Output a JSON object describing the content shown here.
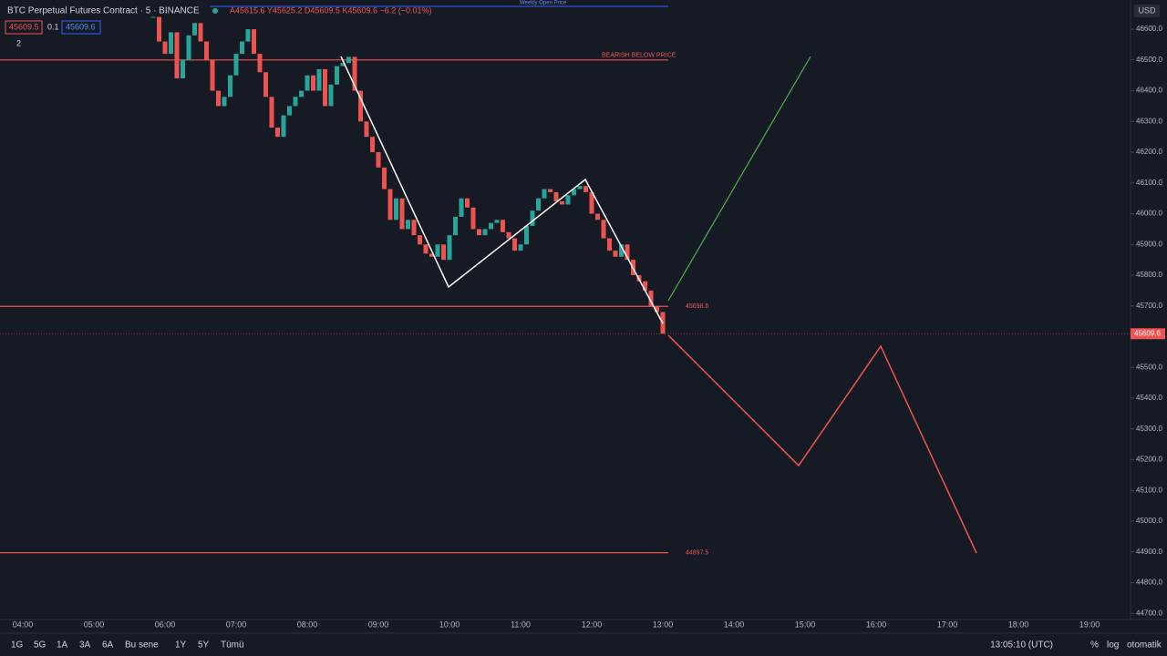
{
  "header": {
    "symbol": "BTC Perpetual Futures Contract · 5 · BINANCE",
    "ohlc": "A45615.6 Y45625.2 D45609.5 K45609.6 −6.2 (−0.01%)",
    "sell": "45609.5",
    "spread": "0.1",
    "buy": "45609.6",
    "indicators": "2",
    "currency": "USD",
    "weekly": "Weekly Open Price"
  },
  "toolbar": {
    "ranges": [
      "1G",
      "5G",
      "1A",
      "3A",
      "6A",
      "Bu sene",
      "1Y",
      "5Y",
      "Tümü"
    ],
    "clock": "13:05:10 (UTC)",
    "percent": "%",
    "log": "log",
    "auto": "otomatik"
  },
  "chart_data": {
    "type": "candlestick",
    "title": "BTC Perpetual Futures Contract",
    "values": [
      46640,
      46560,
      46520,
      46590,
      46440,
      46500,
      46580,
      46620,
      46560,
      46500,
      46400,
      46350,
      46380,
      46450,
      46520,
      46560,
      46600,
      46520,
      46460,
      46380,
      46280,
      46250,
      46320,
      46350,
      46380,
      46400,
      46450,
      46400,
      46470,
      46350,
      46420,
      46480,
      46490,
      46510,
      46400,
      46300,
      46250,
      46200,
      46150,
      46080,
      45980,
      46050,
      45950,
      45980,
      45930,
      45900,
      45870,
      45860,
      45900,
      45850,
      45930,
      45990,
      46050,
      46020,
      45950,
      45930,
      45950,
      45970,
      45980,
      45940,
      45920,
      45880,
      45900,
      45960,
      46010,
      46050,
      46080,
      46070,
      46040,
      46030,
      46060,
      46080,
      46090,
      46070,
      46000,
      45980,
      45920,
      45880,
      45860,
      45900,
      45850,
      45800,
      45780,
      45750,
      45700,
      45680,
      45609.6
    ],
    "time_labels": [
      "04:00",
      "05:00",
      "06:00",
      "07:00",
      "08:00",
      "09:00",
      "10:00",
      "11:00",
      "12:00",
      "13:00",
      "14:00",
      "15:00",
      "16:00",
      "17:00",
      "18:00",
      "19:00"
    ],
    "ylim": [
      44680,
      46695
    ],
    "yticks": [
      {
        "value": 46600,
        "label": "46600.0"
      },
      {
        "value": 46500,
        "label": "46500.0"
      },
      {
        "value": 46400,
        "label": "46400.0"
      },
      {
        "value": 46300,
        "label": "46300.0"
      },
      {
        "value": 46200,
        "label": "46200.0"
      },
      {
        "value": 46100,
        "label": "46100.0"
      },
      {
        "value": 46000,
        "label": "46000.0"
      },
      {
        "value": 45900,
        "label": "45900.0"
      },
      {
        "value": 45800,
        "label": "45800.0"
      },
      {
        "value": 45700,
        "label": "45700.0"
      },
      {
        "value": 45600,
        "label": "45600.0"
      },
      {
        "value": 45500,
        "label": "45500.0"
      },
      {
        "value": 45400,
        "label": "45400.0"
      },
      {
        "value": 45300,
        "label": "45300.0"
      },
      {
        "value": 45200,
        "label": "45200.0"
      },
      {
        "value": 45100,
        "label": "45100.0"
      },
      {
        "value": 45000,
        "label": "45000.0"
      },
      {
        "value": 44900,
        "label": "44900.0"
      },
      {
        "value": 44800,
        "label": "44800.0"
      },
      {
        "value": 44700,
        "label": "44700.0"
      }
    ],
    "levels": [
      {
        "value": 46500,
        "label": "BEARISH BELOW PRICE"
      },
      {
        "value": 45698.6,
        "label": "45698.6"
      },
      {
        "value": 44897.5,
        "label": "44897.5"
      }
    ],
    "last_price": {
      "value": 45609.6,
      "label": "45609.6"
    },
    "up_color": "#26a69a",
    "down_color": "#ef5350"
  }
}
